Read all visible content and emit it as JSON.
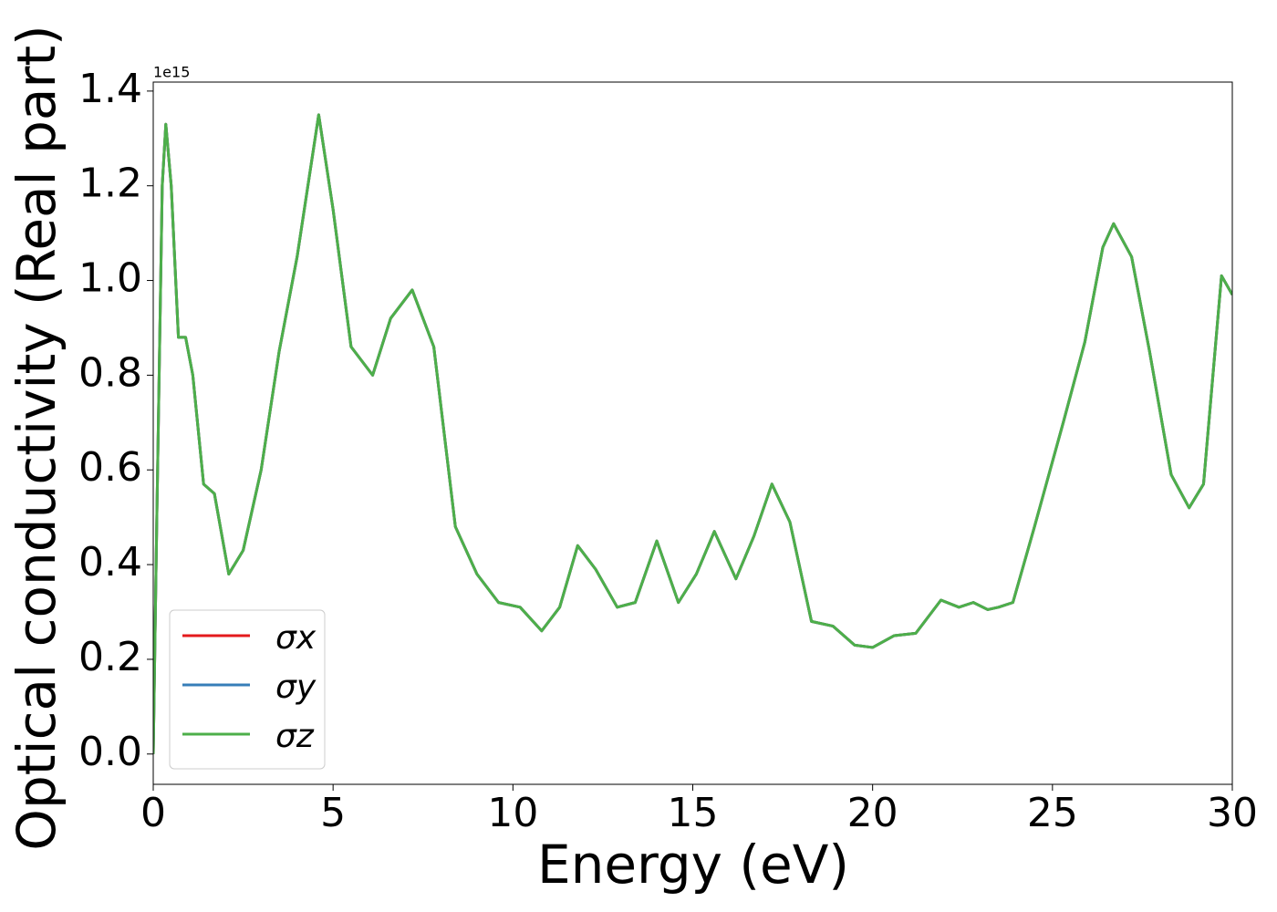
{
  "chart_data": {
    "type": "line",
    "xlabel": "Energy (eV)",
    "ylabel": "Optical conductivity (Real part)",
    "y_offset_label": "1e15",
    "x": [
      0,
      0.1,
      0.25,
      0.35,
      0.5,
      0.7,
      0.9,
      1.1,
      1.4,
      1.7,
      2.1,
      2.5,
      3.0,
      3.5,
      4.0,
      4.6,
      5.0,
      5.5,
      6.1,
      6.6,
      7.2,
      7.8,
      8.4,
      9.0,
      9.6,
      10.2,
      10.8,
      11.3,
      11.8,
      12.3,
      12.9,
      13.4,
      14.0,
      14.6,
      15.1,
      15.6,
      16.2,
      16.7,
      17.2,
      17.7,
      18.3,
      18.9,
      19.5,
      20.0,
      20.6,
      21.2,
      21.9,
      22.4,
      22.8,
      23.2,
      23.5,
      23.9,
      24.5,
      25.3,
      25.9,
      26.4,
      26.7,
      27.2,
      27.7,
      28.3,
      28.8,
      29.2,
      29.7,
      30.0
    ],
    "series": [
      {
        "name": "σx",
        "color": "#e41a1c",
        "values": [
          0,
          0.5,
          1.2,
          1.33,
          1.2,
          0.88,
          0.88,
          0.8,
          0.57,
          0.55,
          0.38,
          0.43,
          0.6,
          0.85,
          1.05,
          1.35,
          1.15,
          0.86,
          0.8,
          0.92,
          0.98,
          0.86,
          0.48,
          0.38,
          0.32,
          0.31,
          0.26,
          0.31,
          0.44,
          0.39,
          0.31,
          0.32,
          0.45,
          0.32,
          0.38,
          0.47,
          0.37,
          0.46,
          0.57,
          0.49,
          0.28,
          0.27,
          0.23,
          0.225,
          0.25,
          0.255,
          0.325,
          0.31,
          0.32,
          0.305,
          0.31,
          0.32,
          0.48,
          0.7,
          0.87,
          1.07,
          1.12,
          1.05,
          0.85,
          0.59,
          0.52,
          0.57,
          1.01,
          0.97
        ]
      },
      {
        "name": "σy",
        "color": "#377eb8",
        "values": [
          0,
          0.5,
          1.2,
          1.33,
          1.2,
          0.88,
          0.88,
          0.8,
          0.57,
          0.55,
          0.38,
          0.43,
          0.6,
          0.85,
          1.05,
          1.35,
          1.15,
          0.86,
          0.8,
          0.92,
          0.98,
          0.86,
          0.48,
          0.38,
          0.32,
          0.31,
          0.26,
          0.31,
          0.44,
          0.39,
          0.31,
          0.32,
          0.45,
          0.32,
          0.38,
          0.47,
          0.37,
          0.46,
          0.57,
          0.49,
          0.28,
          0.27,
          0.23,
          0.225,
          0.25,
          0.255,
          0.325,
          0.31,
          0.32,
          0.305,
          0.31,
          0.32,
          0.48,
          0.7,
          0.87,
          1.07,
          1.12,
          1.05,
          0.85,
          0.59,
          0.52,
          0.57,
          1.01,
          0.97
        ]
      },
      {
        "name": "σz",
        "color": "#4daf4a",
        "values": [
          0,
          0.5,
          1.2,
          1.33,
          1.2,
          0.88,
          0.88,
          0.8,
          0.57,
          0.55,
          0.38,
          0.43,
          0.6,
          0.85,
          1.05,
          1.35,
          1.15,
          0.86,
          0.8,
          0.92,
          0.98,
          0.86,
          0.48,
          0.38,
          0.32,
          0.31,
          0.26,
          0.31,
          0.44,
          0.39,
          0.31,
          0.32,
          0.45,
          0.32,
          0.38,
          0.47,
          0.37,
          0.46,
          0.57,
          0.49,
          0.28,
          0.27,
          0.23,
          0.225,
          0.25,
          0.255,
          0.325,
          0.31,
          0.32,
          0.305,
          0.31,
          0.32,
          0.48,
          0.7,
          0.87,
          1.07,
          1.12,
          1.05,
          0.85,
          0.59,
          0.52,
          0.57,
          1.01,
          0.97
        ]
      }
    ],
    "xlim": [
      0,
      30
    ],
    "xticks": [
      0,
      5,
      10,
      15,
      20,
      25,
      30
    ],
    "ylim": [
      -0.064,
      1.419
    ],
    "yticks": [
      {
        "value": 0,
        "label": "0.0"
      },
      0.2,
      0.4,
      0.6,
      0.8,
      {
        "value": 1,
        "label": "1.0"
      },
      1.2,
      1.4
    ],
    "grid": false,
    "legend": "lower left"
  }
}
